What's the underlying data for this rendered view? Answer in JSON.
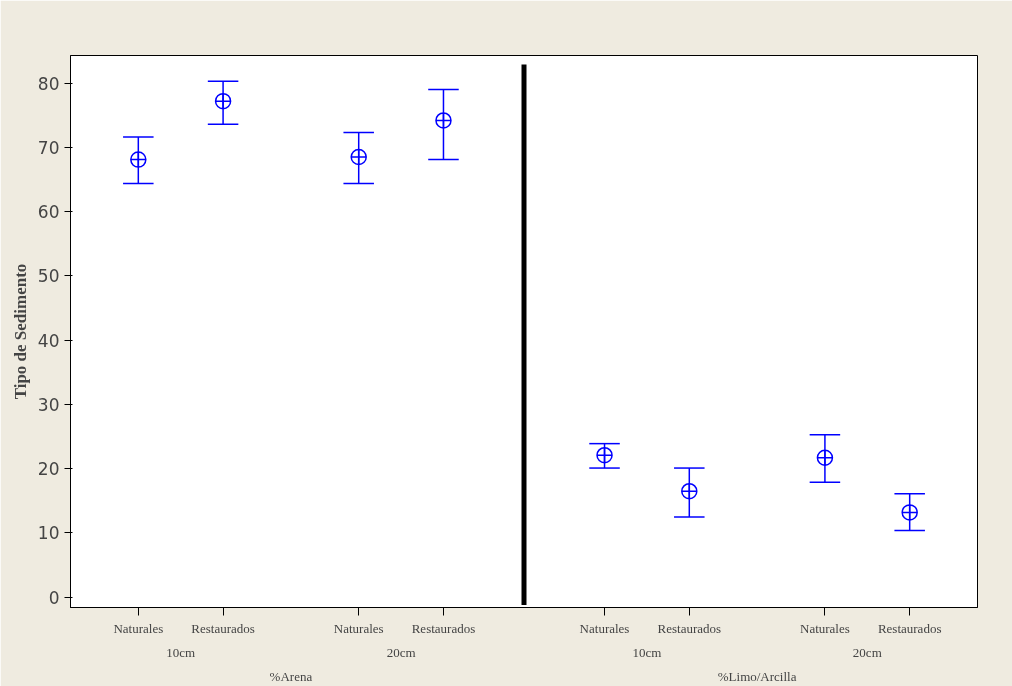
{
  "chart_data": {
    "type": "scatter",
    "ylabel": "Tipo de Sedimento",
    "categories": [
      "Naturales",
      "Restaurados",
      "Naturales",
      "Restaurados",
      "Naturales",
      "Restaurados",
      "Naturales",
      "Restaurados"
    ],
    "annotations": [
      "10cm",
      "20cm",
      "10cm",
      "20cm",
      "%Arena",
      "%Limo/Arcilla"
    ],
    "series": [
      {
        "color": "#0000ff",
        "values": [
          68.1,
          77.2,
          68.5,
          74.2,
          22.1,
          16.5,
          21.7,
          13.2
        ],
        "errors": [
          [
            64.4,
            71.6
          ],
          [
            73.6,
            80.3
          ],
          [
            64.4,
            72.3
          ],
          [
            68.1,
            79.0
          ],
          [
            20.1,
            23.9
          ],
          [
            12.5,
            20.1
          ],
          [
            17.9,
            25.3
          ],
          [
            10.4,
            16.1
          ]
        ]
      }
    ],
    "marker": "circle",
    "ylim": [
      -1.6,
      84.3
    ],
    "yticks": [
      0,
      10,
      20,
      30,
      40,
      50,
      60,
      70,
      80
    ],
    "grid": false
  }
}
